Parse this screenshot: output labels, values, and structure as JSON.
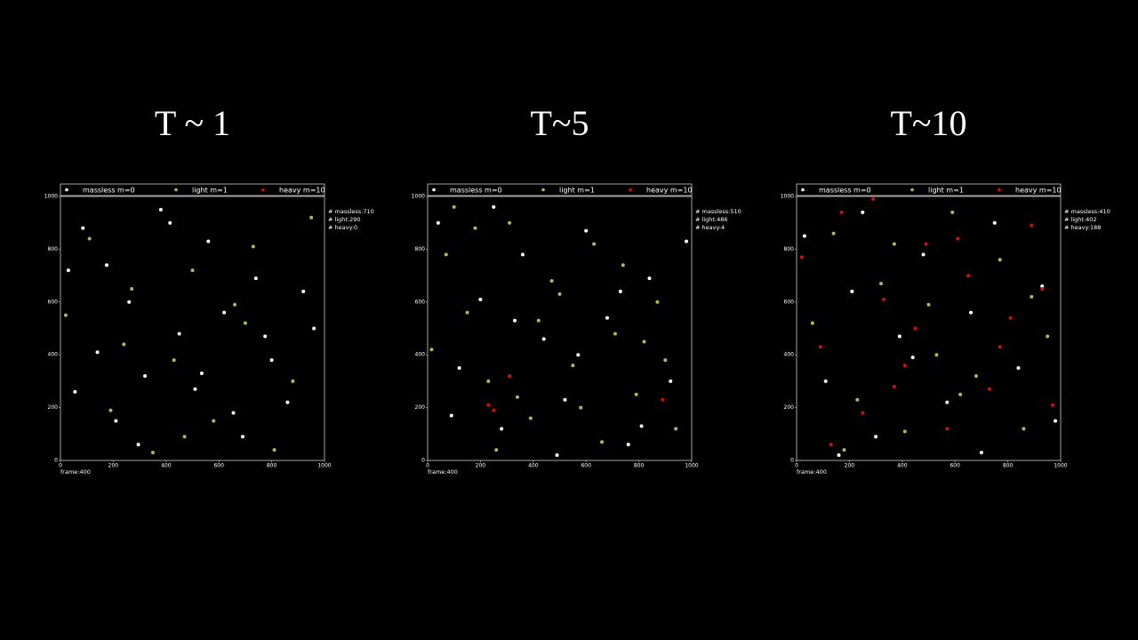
{
  "chart_data": [
    {
      "type": "scatter",
      "title": "T ~ 1",
      "series": [
        {
          "name": "massless m=0",
          "color": "#ffffff",
          "x": [
            30,
            85,
            140,
            210,
            260,
            320,
            380,
            450,
            510,
            560,
            620,
            690,
            740,
            800,
            860,
            920,
            960,
            55,
            175,
            295,
            415,
            535,
            655,
            775
          ],
          "y": [
            720,
            880,
            410,
            150,
            600,
            320,
            950,
            480,
            270,
            830,
            560,
            90,
            690,
            380,
            220,
            640,
            500,
            260,
            740,
            60,
            900,
            330,
            180,
            470
          ]
        },
        {
          "name": "light m=1",
          "color": "#b5b55a",
          "x": [
            20,
            110,
            190,
            270,
            350,
            430,
            500,
            580,
            660,
            730,
            810,
            880,
            950,
            240,
            470,
            700
          ],
          "y": [
            550,
            840,
            190,
            650,
            30,
            380,
            720,
            150,
            590,
            810,
            40,
            300,
            920,
            440,
            90,
            520
          ]
        },
        {
          "name": "heavy m=10",
          "color": "#d01010",
          "x": [],
          "y": []
        }
      ],
      "xlim": [
        0,
        1000
      ],
      "ylim": [
        0,
        1000
      ],
      "xticks": [
        0,
        200,
        400,
        600,
        800,
        1000
      ],
      "yticks": [
        0,
        200,
        400,
        600,
        800,
        1000
      ],
      "legend": "top",
      "counts": [
        "# massless:710",
        "# light:290",
        "# heavy:0"
      ],
      "footer": "frame:400"
    },
    {
      "type": "scatter",
      "title": "T~5",
      "series": [
        {
          "name": "massless m=0",
          "color": "#ffffff",
          "x": [
            40,
            120,
            200,
            280,
            360,
            440,
            520,
            600,
            680,
            760,
            840,
            920,
            980,
            90,
            330,
            570,
            810,
            250,
            490,
            730
          ],
          "y": [
            900,
            350,
            610,
            120,
            780,
            460,
            230,
            870,
            540,
            60,
            690,
            300,
            830,
            170,
            530,
            400,
            130,
            960,
            20,
            640
          ]
        },
        {
          "name": "light m=1",
          "color": "#b5b55a",
          "x": [
            15,
            70,
            150,
            230,
            310,
            390,
            470,
            550,
            630,
            710,
            790,
            870,
            940,
            100,
            260,
            420,
            580,
            740,
            900,
            180,
            340,
            500,
            660,
            820
          ],
          "y": [
            420,
            780,
            560,
            300,
            900,
            160,
            680,
            360,
            820,
            480,
            250,
            600,
            120,
            960,
            40,
            530,
            200,
            740,
            380,
            880,
            240,
            630,
            70,
            450
          ]
        },
        {
          "name": "heavy m=10",
          "color": "#d01010",
          "x": [
            230,
            250,
            310,
            890
          ],
          "y": [
            210,
            190,
            320,
            230
          ]
        }
      ],
      "xlim": [
        0,
        1000
      ],
      "ylim": [
        0,
        1000
      ],
      "xticks": [
        0,
        200,
        400,
        600,
        800,
        1000
      ],
      "yticks": [
        0,
        200,
        400,
        600,
        800,
        1000
      ],
      "legend": "top",
      "counts": [
        "# massless:510",
        "# light:486",
        "# heavy:4"
      ],
      "footer": "frame:400"
    },
    {
      "type": "scatter",
      "title": "T~10",
      "series": [
        {
          "name": "massless m=0",
          "color": "#ffffff",
          "x": [
            30,
            110,
            210,
            300,
            390,
            480,
            570,
            660,
            750,
            840,
            930,
            980,
            160,
            440,
            700,
            250
          ],
          "y": [
            850,
            300,
            640,
            90,
            470,
            780,
            220,
            560,
            900,
            350,
            660,
            150,
            20,
            390,
            30,
            940
          ]
        },
        {
          "name": "light m=1",
          "color": "#b5b55a",
          "x": [
            60,
            140,
            230,
            320,
            410,
            500,
            590,
            680,
            770,
            860,
            950,
            180,
            370,
            620,
            890,
            530
          ],
          "y": [
            520,
            860,
            230,
            670,
            110,
            590,
            940,
            320,
            760,
            120,
            470,
            40,
            820,
            250,
            620,
            400
          ]
        },
        {
          "name": "heavy m=10",
          "color": "#d01010",
          "x": [
            20,
            90,
            170,
            250,
            330,
            410,
            490,
            570,
            650,
            730,
            810,
            890,
            970,
            130,
            290,
            450,
            610,
            770,
            930,
            370
          ],
          "y": [
            770,
            430,
            940,
            180,
            610,
            360,
            820,
            120,
            700,
            270,
            540,
            890,
            210,
            60,
            990,
            500,
            840,
            430,
            650,
            280
          ]
        }
      ],
      "xlim": [
        0,
        1000
      ],
      "ylim": [
        0,
        1000
      ],
      "xticks": [
        0,
        200,
        400,
        600,
        800,
        1000
      ],
      "yticks": [
        0,
        200,
        400,
        600,
        800,
        1000
      ],
      "legend": "top",
      "counts": [
        "# massless:410",
        "# light:402",
        "# heavy:188"
      ],
      "footer": "frame:400"
    }
  ]
}
